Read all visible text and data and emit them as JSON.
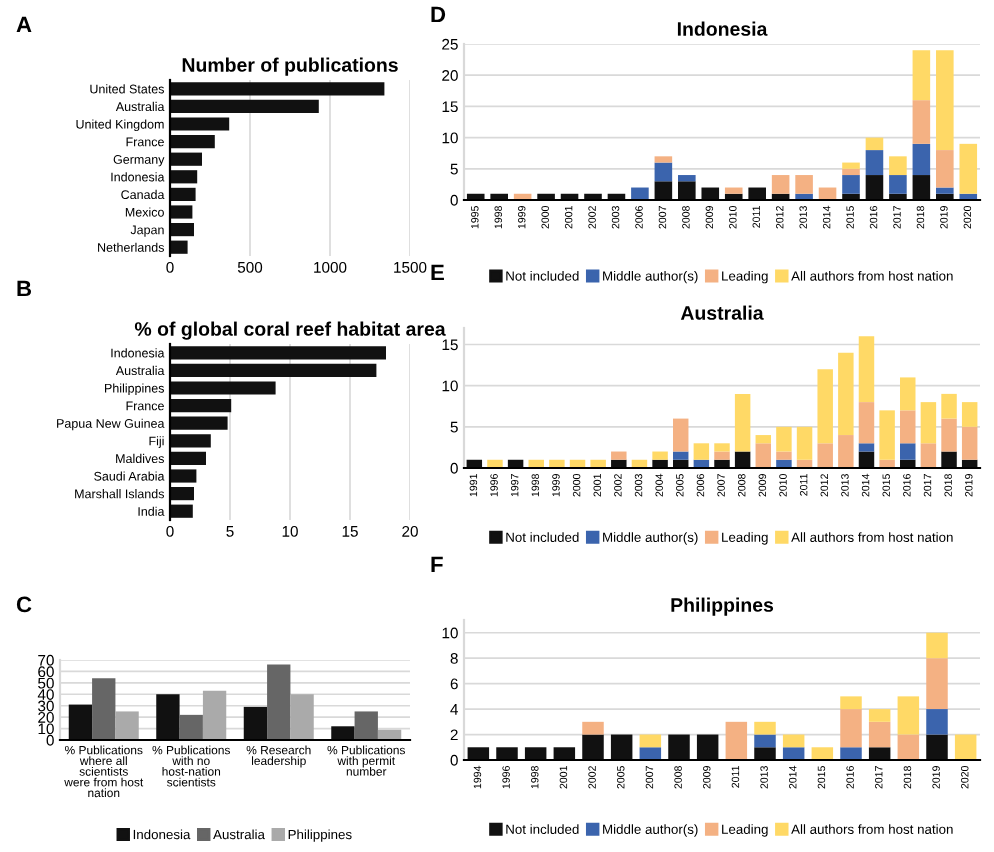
{
  "chart_data": [
    {
      "type": "bar",
      "orientation": "horizontal",
      "title": "Number of publications",
      "annotations": [
        "A"
      ],
      "categories": [
        "United States",
        "Australia",
        "United Kingdom",
        "France",
        "Germany",
        "Indonesia",
        "Canada",
        "Mexico",
        "Japan",
        "Netherlands"
      ],
      "series": [
        {
          "color": "#111111",
          "values": [
            1340,
            930,
            370,
            280,
            200,
            170,
            160,
            140,
            150,
            110
          ]
        }
      ],
      "xlim": [
        0,
        1500
      ],
      "xticks": [
        0,
        500,
        1000,
        1500
      ],
      "grid": "x",
      "legend": false
    },
    {
      "type": "bar",
      "orientation": "horizontal",
      "title": "% of global coral reef habitat area",
      "annotations": [
        "B"
      ],
      "categories": [
        "Indonesia",
        "Australia",
        "Philippines",
        "France",
        "Papua New Guinea",
        "Fiji",
        "Maldives",
        "Saudi Arabia",
        "Marshall Islands",
        "India"
      ],
      "series": [
        {
          "color": "#111111",
          "values": [
            18,
            17.2,
            8.8,
            5.1,
            4.8,
            3.4,
            3.0,
            2.2,
            2.0,
            1.9
          ]
        }
      ],
      "xlim": [
        0,
        20
      ],
      "xticks": [
        0,
        5,
        10,
        15,
        20
      ],
      "grid": "x",
      "legend": false
    },
    {
      "type": "bar",
      "annotations": [
        "C"
      ],
      "categories": [
        "% Publications where all scientists were from host nation",
        "% Publications with no host-nation scientists",
        "% Research leadership",
        "% Publications with permit number"
      ],
      "series": [
        {
          "name": "Indonesia",
          "color": "#111111",
          "values": [
            31,
            40,
            29,
            12
          ]
        },
        {
          "name": "Australia",
          "color": "#666666",
          "values": [
            54,
            22,
            66,
            25
          ]
        },
        {
          "name": "Philippines",
          "color": "#aaaaaa",
          "values": [
            25,
            43,
            40,
            9
          ]
        }
      ],
      "ylim": [
        0,
        70
      ],
      "yticks": [
        0,
        10,
        20,
        30,
        40,
        50,
        60,
        70
      ],
      "grid": "y",
      "legend": "bottom"
    },
    {
      "type": "bar",
      "stacked": true,
      "title": "Indonesia",
      "annotations": [
        "D"
      ],
      "categories": [
        "1995",
        "1998",
        "1999",
        "2000",
        "2001",
        "2002",
        "2003",
        "2006",
        "2007",
        "2008",
        "2009",
        "2010",
        "2011",
        "2012",
        "2013",
        "2014",
        "2015",
        "2016",
        "2017",
        "2018",
        "2019",
        "2020"
      ],
      "series": [
        {
          "name": "Not included",
          "color": "#111111",
          "values": [
            1,
            1,
            0,
            1,
            1,
            1,
            1,
            0,
            3,
            3,
            2,
            1,
            2,
            1,
            0,
            0,
            1,
            4,
            1,
            4,
            1,
            0
          ]
        },
        {
          "name": "Middle author(s)",
          "color": "#3b64ad",
          "values": [
            0,
            0,
            0,
            0,
            0,
            0,
            0,
            2,
            3,
            1,
            0,
            0,
            0,
            0,
            1,
            0,
            3,
            4,
            3,
            5,
            1,
            1
          ]
        },
        {
          "name": "Leading",
          "color": "#f4b183",
          "values": [
            0,
            0,
            1,
            0,
            0,
            0,
            0,
            0,
            1,
            0,
            0,
            1,
            0,
            3,
            3,
            2,
            1,
            0,
            0,
            7,
            6,
            0
          ]
        },
        {
          "name": "All authors from host nation",
          "color": "#ffd966",
          "values": [
            0,
            0,
            0,
            0,
            0,
            0,
            0,
            0,
            0,
            0,
            0,
            0,
            0,
            0,
            0,
            0,
            1,
            2,
            3,
            8,
            16,
            8
          ]
        }
      ],
      "ylim": [
        0,
        25
      ],
      "yticks": [
        0,
        5,
        10,
        15,
        20,
        25
      ],
      "grid": "y",
      "legend": "bottom"
    },
    {
      "type": "bar",
      "stacked": true,
      "title": "Australia",
      "annotations": [
        "E"
      ],
      "categories": [
        "1991",
        "1996",
        "1997",
        "1998",
        "1999",
        "2000",
        "2001",
        "2002",
        "2003",
        "2004",
        "2005",
        "2006",
        "2007",
        "2008",
        "2009",
        "2010",
        "2011",
        "2012",
        "2013",
        "2014",
        "2015",
        "2016",
        "2017",
        "2018",
        "2019"
      ],
      "series": [
        {
          "name": "Not included",
          "color": "#111111",
          "values": [
            1,
            0,
            1,
            0,
            0,
            0,
            0,
            1,
            0,
            1,
            1,
            0,
            1,
            2,
            0,
            0,
            0,
            0,
            0,
            2,
            0,
            1,
            0,
            2,
            1
          ]
        },
        {
          "name": "Middle author(s)",
          "color": "#3b64ad",
          "values": [
            0,
            0,
            0,
            0,
            0,
            0,
            0,
            0,
            0,
            0,
            1,
            1,
            0,
            0,
            0,
            1,
            0,
            0,
            0,
            1,
            0,
            2,
            0,
            0,
            0
          ]
        },
        {
          "name": "Leading",
          "color": "#f4b183",
          "values": [
            0,
            0,
            0,
            0,
            0,
            0,
            0,
            1,
            0,
            0,
            4,
            0,
            1,
            0,
            3,
            1,
            1,
            3,
            4,
            5,
            1,
            4,
            3,
            4,
            4
          ]
        },
        {
          "name": "All authors from host nation",
          "color": "#ffd966",
          "values": [
            0,
            1,
            0,
            1,
            1,
            1,
            1,
            0,
            1,
            1,
            0,
            2,
            1,
            7,
            1,
            3,
            4,
            9,
            10,
            8,
            6,
            4,
            5,
            3,
            3
          ]
        }
      ],
      "ylim": [
        0,
        17
      ],
      "yticks": [
        0,
        5,
        10,
        15
      ],
      "grid": "y",
      "legend": "bottom"
    },
    {
      "type": "bar",
      "stacked": true,
      "title": "Philippines",
      "annotations": [
        "F"
      ],
      "categories": [
        "1994",
        "1996",
        "1998",
        "2001",
        "2002",
        "2005",
        "2007",
        "2008",
        "2009",
        "2011",
        "2013",
        "2014",
        "2015",
        "2016",
        "2017",
        "2018",
        "2019",
        "2020"
      ],
      "series": [
        {
          "name": "Not included",
          "color": "#111111",
          "values": [
            1,
            1,
            1,
            1,
            2,
            2,
            0,
            2,
            2,
            0,
            1,
            0,
            0,
            0,
            1,
            0,
            2,
            0
          ]
        },
        {
          "name": "Middle author(s)",
          "color": "#3b64ad",
          "values": [
            0,
            0,
            0,
            0,
            0,
            0,
            1,
            0,
            0,
            0,
            1,
            1,
            0,
            1,
            0,
            0,
            2,
            0
          ]
        },
        {
          "name": "Leading",
          "color": "#f4b183",
          "values": [
            0,
            0,
            0,
            0,
            1,
            0,
            0,
            0,
            0,
            3,
            0,
            0,
            0,
            3,
            2,
            2,
            4,
            0
          ]
        },
        {
          "name": "All authors from host nation",
          "color": "#ffd966",
          "values": [
            0,
            0,
            0,
            0,
            0,
            0,
            1,
            0,
            0,
            0,
            1,
            1,
            1,
            1,
            1,
            3,
            2,
            2
          ]
        }
      ],
      "ylim": [
        0,
        11
      ],
      "yticks": [
        0,
        2,
        4,
        6,
        8,
        10
      ],
      "grid": "y",
      "legend": "bottom"
    }
  ]
}
